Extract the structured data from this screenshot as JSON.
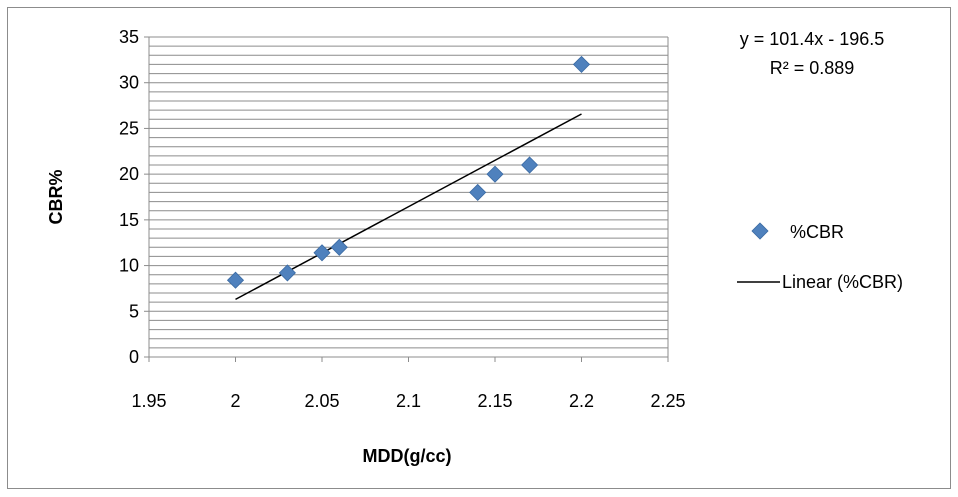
{
  "chart_data": {
    "type": "scatter",
    "title": "",
    "xlabel": "MDD(g/cc)",
    "ylabel": "CBR%",
    "xlim": [
      1.95,
      2.25
    ],
    "ylim": [
      0,
      35
    ],
    "x_ticks": [
      "1.95",
      "2",
      "2.05",
      "2.1",
      "2.15",
      "2.2",
      "2.25"
    ],
    "y_ticks": [
      "0",
      "5",
      "10",
      "15",
      "20",
      "25",
      "30",
      "35"
    ],
    "grid": "horizontal",
    "legend_position": "right",
    "series": [
      {
        "name": "%CBR",
        "color": "#4f81bd",
        "marker": "diamond",
        "points": [
          {
            "x": 2.0,
            "y": 8.4
          },
          {
            "x": 2.03,
            "y": 9.2
          },
          {
            "x": 2.05,
            "y": 11.4
          },
          {
            "x": 2.06,
            "y": 12.0
          },
          {
            "x": 2.14,
            "y": 18.0
          },
          {
            "x": 2.15,
            "y": 20.0
          },
          {
            "x": 2.17,
            "y": 21.0
          },
          {
            "x": 2.2,
            "y": 32.0
          }
        ]
      }
    ],
    "trendline": {
      "name": "Linear (%CBR)",
      "type": "linear",
      "color": "#000000",
      "slope": 101.4,
      "intercept": -196.5,
      "x_range": [
        2.0,
        2.2
      ]
    },
    "annotations": {
      "equation": "y = 101.4x - 196.5",
      "r_squared": "R² = 0.889"
    }
  }
}
